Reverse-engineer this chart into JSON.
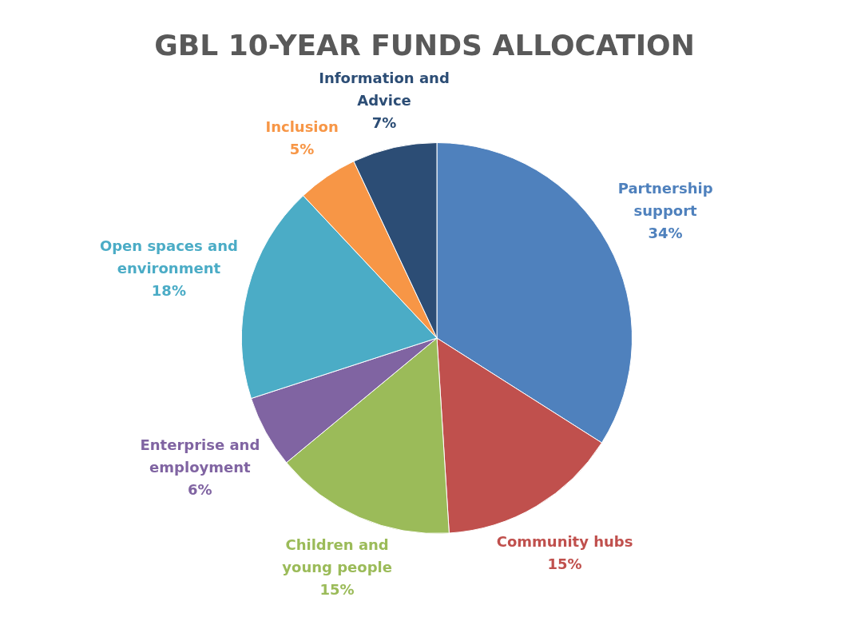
{
  "chart_data": {
    "type": "pie",
    "title": "GBL 10-YEAR FUNDS ALLOCATION",
    "categories": [
      "Partnership support",
      "Community hubs",
      "Children and young people",
      "Enterprise and employment",
      "Open spaces and environment",
      "Inclusion",
      "Information and Advice"
    ],
    "values": [
      34,
      15,
      15,
      6,
      18,
      5,
      7
    ],
    "value_labels": [
      "34%",
      "15%",
      "15%",
      "6%",
      "18%",
      "5%",
      "7%"
    ],
    "colors": [
      "#4f81bd",
      "#c0504d",
      "#9bbb59",
      "#8064a2",
      "#4bacc6",
      "#f79646",
      "#2c4d75"
    ]
  }
}
